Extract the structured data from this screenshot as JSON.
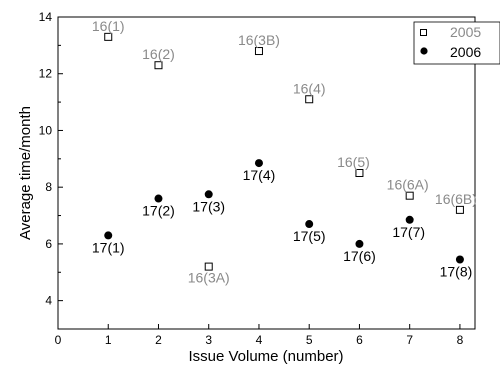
{
  "chart_data": {
    "type": "scatter",
    "xlabel": "Issue Volume (number)",
    "ylabel": "Average time/month",
    "xlim": [
      0,
      8.3
    ],
    "ylim": [
      3,
      14
    ],
    "xticks": [
      0,
      1,
      2,
      3,
      4,
      5,
      6,
      7,
      8
    ],
    "yticks": [
      4,
      6,
      8,
      10,
      12,
      14
    ],
    "legend_position": "top-right",
    "grid": false,
    "series": [
      {
        "name": "2005",
        "marker": "open-square",
        "color": "#8a8a8a",
        "points": [
          {
            "x": 1,
            "y": 13.3,
            "label": "16(1)"
          },
          {
            "x": 2,
            "y": 12.3,
            "label": "16(2)"
          },
          {
            "x": 3,
            "y": 5.2,
            "label": "16(3A)"
          },
          {
            "x": 4,
            "y": 12.8,
            "label": "16(3B)"
          },
          {
            "x": 5,
            "y": 11.1,
            "label": "16(4)"
          },
          {
            "x": 6,
            "y": 8.5,
            "label": "16(5)"
          },
          {
            "x": 7,
            "y": 7.7,
            "label": "16(6A)"
          },
          {
            "x": 8,
            "y": 7.2,
            "label": "16(6B)"
          }
        ]
      },
      {
        "name": "2006",
        "marker": "filled-circle",
        "color": "#000000",
        "points": [
          {
            "x": 1,
            "y": 6.3,
            "label": "17(1)"
          },
          {
            "x": 2,
            "y": 7.6,
            "label": "17(2)"
          },
          {
            "x": 3,
            "y": 7.75,
            "label": "17(3)"
          },
          {
            "x": 4,
            "y": 8.85,
            "label": "17(4)"
          },
          {
            "x": 5,
            "y": 6.7,
            "label": "17(5)"
          },
          {
            "x": 6,
            "y": 6.0,
            "label": "17(6)"
          },
          {
            "x": 7,
            "y": 6.85,
            "label": "17(7)"
          },
          {
            "x": 8,
            "y": 5.45,
            "label": "17(8)"
          }
        ]
      }
    ]
  }
}
